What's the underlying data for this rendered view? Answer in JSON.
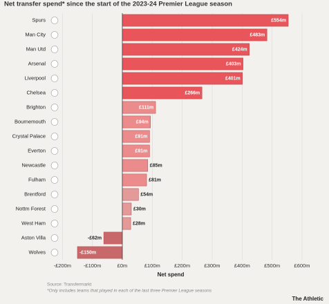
{
  "chart_data": {
    "type": "bar",
    "orientation": "horizontal",
    "title": "Net transfer spend* since the start of the 2023-24 Premier League season",
    "categories": [
      "Spurs",
      "Man City",
      "Man Utd",
      "Arsenal",
      "Liverpool",
      "Chelsea",
      "Brighton",
      "Bournemouth",
      "Crystal Palace",
      "Everton",
      "Newcastle",
      "Fulham",
      "Brentford",
      "Nottm Forest",
      "West Ham",
      "Aston Villa",
      "Wolves"
    ],
    "values": [
      554,
      483,
      424,
      403,
      401,
      266,
      111,
      94,
      91,
      91,
      85,
      81,
      54,
      30,
      28,
      -62,
      -150
    ],
    "value_labels": [
      "£554m",
      "£483m",
      "£424m",
      "£403m",
      "£401m",
      "£266m",
      "£111m",
      "£94m",
      "£91m",
      "£91m",
      "£85m",
      "£81m",
      "£54m",
      "£30m",
      "£28m",
      "-£62m",
      "-£150m"
    ],
    "colors": [
      "#e8555b",
      "#e8555b",
      "#e8555b",
      "#e8555b",
      "#e8555b",
      "#e8555b",
      "#eb8b8c",
      "#eb8b8c",
      "#eb8b8c",
      "#eb8b8c",
      "#eb8b8c",
      "#eb8b8c",
      "#e49a99",
      "#e49a99",
      "#e49a99",
      "#c8686b",
      "#c8686b"
    ],
    "xlim": [
      -200,
      600
    ],
    "xticks": [
      {
        "value": -200,
        "label": "-£200m"
      },
      {
        "value": -100,
        "label": "-£100m"
      },
      {
        "value": 0,
        "label": "£0m"
      },
      {
        "value": 100,
        "label": "£100m"
      },
      {
        "value": 200,
        "label": "£200m"
      },
      {
        "value": 300,
        "label": "£300m"
      },
      {
        "value": 400,
        "label": "£400m"
      },
      {
        "value": 500,
        "label": "£500m"
      },
      {
        "value": 600,
        "label": "£600m"
      }
    ],
    "grid": true,
    "xlabel": "Net spend",
    "source": "Source: Transfermarkt",
    "footnote": "*Only includes teams that played in each of the last three Premier League seasons",
    "brand": "The Athletic"
  }
}
